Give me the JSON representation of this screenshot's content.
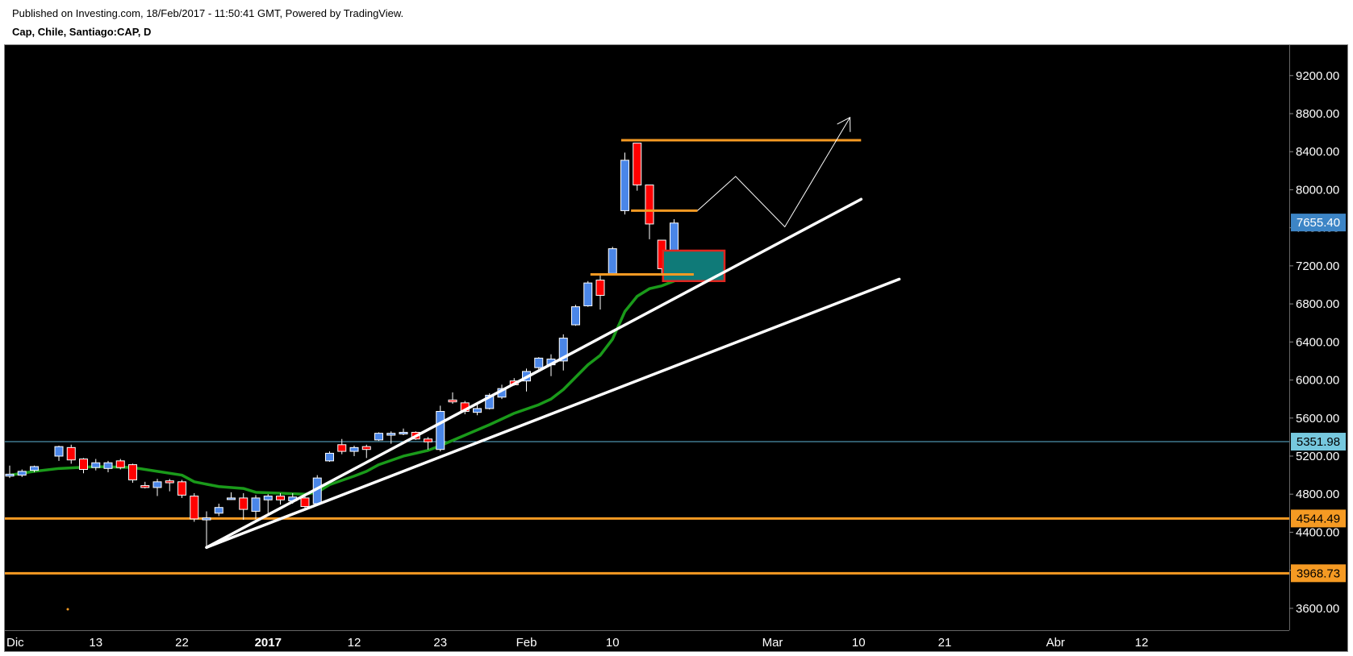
{
  "header": {
    "published": "Published on Investing.com, 18/Feb/2017 - 11:50:41 GMT, Powered by TradingView.",
    "symbol": "Cap, Chile, Santiago:CAP, D"
  },
  "chart_data": {
    "type": "candlestick",
    "y_axis": {
      "min": 3370,
      "max": 9520,
      "ticks": [
        {
          "value": 3600,
          "label": "3600.00"
        },
        {
          "value": 4000,
          "label": "4000.00"
        },
        {
          "value": 4400,
          "label": "4400.00"
        },
        {
          "value": 4800,
          "label": "4800.00"
        },
        {
          "value": 5200,
          "label": "5200.00"
        },
        {
          "value": 5600,
          "label": "5600.00"
        },
        {
          "value": 6000,
          "label": "6000.00"
        },
        {
          "value": 6400,
          "label": "6400.00"
        },
        {
          "value": 6800,
          "label": "6800.00"
        },
        {
          "value": 7200,
          "label": "7200.00"
        },
        {
          "value": 7600,
          "label": "7600.00"
        },
        {
          "value": 8000,
          "label": "8000.00"
        },
        {
          "value": 8400,
          "label": "8400.00"
        },
        {
          "value": 8800,
          "label": "8800.00"
        },
        {
          "value": 9200,
          "label": "9200.00"
        }
      ]
    },
    "x_axis": {
      "ticks": [
        {
          "slot": 0,
          "label": "Dic",
          "bold": false
        },
        {
          "slot": 7,
          "label": "13",
          "bold": false
        },
        {
          "slot": 14,
          "label": "22",
          "bold": false
        },
        {
          "slot": 21,
          "label": "2017",
          "bold": true
        },
        {
          "slot": 28,
          "label": "12",
          "bold": false
        },
        {
          "slot": 35,
          "label": "23",
          "bold": false
        },
        {
          "slot": 42,
          "label": "Feb",
          "bold": false
        },
        {
          "slot": 49,
          "label": "10",
          "bold": false
        },
        {
          "slot": 62,
          "label": "Mar",
          "bold": false
        },
        {
          "slot": 69,
          "label": "10",
          "bold": false
        },
        {
          "slot": 76,
          "label": "21",
          "bold": false
        },
        {
          "slot": 85,
          "label": "Abr",
          "bold": false
        },
        {
          "slot": 92,
          "label": "12",
          "bold": false
        }
      ]
    },
    "candles": [
      {
        "slot": 0,
        "o": 4990,
        "h": 5100,
        "l": 4970,
        "c": 5010
      },
      {
        "slot": 1,
        "o": 5000,
        "h": 5060,
        "l": 4980,
        "c": 5040
      },
      {
        "slot": 2,
        "o": 5050,
        "h": 5100,
        "l": 5030,
        "c": 5090
      },
      {
        "slot": 4,
        "o": 5200,
        "h": 5310,
        "l": 5150,
        "c": 5300
      },
      {
        "slot": 5,
        "o": 5290,
        "h": 5320,
        "l": 5120,
        "c": 5160
      },
      {
        "slot": 6,
        "o": 5170,
        "h": 5180,
        "l": 5020,
        "c": 5060
      },
      {
        "slot": 7,
        "o": 5080,
        "h": 5170,
        "l": 5050,
        "c": 5130
      },
      {
        "slot": 8,
        "o": 5070,
        "h": 5150,
        "l": 5030,
        "c": 5130
      },
      {
        "slot": 9,
        "o": 5150,
        "h": 5170,
        "l": 5060,
        "c": 5080
      },
      {
        "slot": 10,
        "o": 5110,
        "h": 5120,
        "l": 4920,
        "c": 4950
      },
      {
        "slot": 11,
        "o": 4890,
        "h": 4930,
        "l": 4860,
        "c": 4870
      },
      {
        "slot": 12,
        "o": 4870,
        "h": 4960,
        "l": 4780,
        "c": 4930
      },
      {
        "slot": 13,
        "o": 4940,
        "h": 4960,
        "l": 4830,
        "c": 4920
      },
      {
        "slot": 14,
        "o": 4930,
        "h": 4950,
        "l": 4760,
        "c": 4790
      },
      {
        "slot": 15,
        "o": 4780,
        "h": 4810,
        "l": 4510,
        "c": 4540
      },
      {
        "slot": 16,
        "o": 4530,
        "h": 4620,
        "l": 4250,
        "c": 4550
      },
      {
        "slot": 17,
        "o": 4600,
        "h": 4700,
        "l": 4570,
        "c": 4660
      },
      {
        "slot": 18,
        "o": 4750,
        "h": 4820,
        "l": 4740,
        "c": 4760
      },
      {
        "slot": 19,
        "o": 4760,
        "h": 4810,
        "l": 4530,
        "c": 4640
      },
      {
        "slot": 20,
        "o": 4620,
        "h": 4790,
        "l": 4540,
        "c": 4760
      },
      {
        "slot": 21,
        "o": 4740,
        "h": 4800,
        "l": 4600,
        "c": 4780
      },
      {
        "slot": 22,
        "o": 4780,
        "h": 4810,
        "l": 4690,
        "c": 4740
      },
      {
        "slot": 23,
        "o": 4730,
        "h": 4810,
        "l": 4700,
        "c": 4770
      },
      {
        "slot": 24,
        "o": 4760,
        "h": 4790,
        "l": 4640,
        "c": 4670
      },
      {
        "slot": 25,
        "o": 4700,
        "h": 5000,
        "l": 4680,
        "c": 4970
      },
      {
        "slot": 26,
        "o": 5150,
        "h": 5250,
        "l": 5140,
        "c": 5230
      },
      {
        "slot": 27,
        "o": 5320,
        "h": 5380,
        "l": 5220,
        "c": 5250
      },
      {
        "slot": 28,
        "o": 5250,
        "h": 5310,
        "l": 5200,
        "c": 5290
      },
      {
        "slot": 29,
        "o": 5300,
        "h": 5320,
        "l": 5180,
        "c": 5270
      },
      {
        "slot": 30,
        "o": 5370,
        "h": 5450,
        "l": 5360,
        "c": 5440
      },
      {
        "slot": 31,
        "o": 5420,
        "h": 5460,
        "l": 5330,
        "c": 5440
      },
      {
        "slot": 32,
        "o": 5440,
        "h": 5490,
        "l": 5420,
        "c": 5450
      },
      {
        "slot": 33,
        "o": 5450,
        "h": 5460,
        "l": 5370,
        "c": 5380
      },
      {
        "slot": 34,
        "o": 5380,
        "h": 5400,
        "l": 5270,
        "c": 5350
      },
      {
        "slot": 35,
        "o": 5270,
        "h": 5730,
        "l": 5250,
        "c": 5670
      },
      {
        "slot": 36,
        "o": 5790,
        "h": 5870,
        "l": 5750,
        "c": 5770
      },
      {
        "slot": 37,
        "o": 5760,
        "h": 5780,
        "l": 5640,
        "c": 5670
      },
      {
        "slot": 38,
        "o": 5660,
        "h": 5740,
        "l": 5630,
        "c": 5700
      },
      {
        "slot": 39,
        "o": 5700,
        "h": 5860,
        "l": 5690,
        "c": 5840
      },
      {
        "slot": 40,
        "o": 5820,
        "h": 5950,
        "l": 5800,
        "c": 5910
      },
      {
        "slot": 41,
        "o": 5990,
        "h": 6020,
        "l": 5940,
        "c": 5950
      },
      {
        "slot": 42,
        "o": 5990,
        "h": 6120,
        "l": 5880,
        "c": 6090
      },
      {
        "slot": 43,
        "o": 6130,
        "h": 6240,
        "l": 6110,
        "c": 6230
      },
      {
        "slot": 44,
        "o": 6160,
        "h": 6270,
        "l": 6040,
        "c": 6220
      },
      {
        "slot": 45,
        "o": 6200,
        "h": 6480,
        "l": 6100,
        "c": 6440
      },
      {
        "slot": 46,
        "o": 6580,
        "h": 6790,
        "l": 6570,
        "c": 6770
      },
      {
        "slot": 47,
        "o": 6780,
        "h": 7040,
        "l": 6770,
        "c": 7020
      },
      {
        "slot": 48,
        "o": 7050,
        "h": 7110,
        "l": 6740,
        "c": 6890
      },
      {
        "slot": 49,
        "o": 7120,
        "h": 7400,
        "l": 7110,
        "c": 7380
      },
      {
        "slot": 50,
        "o": 7780,
        "h": 8390,
        "l": 7740,
        "c": 8310
      },
      {
        "slot": 51,
        "o": 8490,
        "h": 8490,
        "l": 7990,
        "c": 8050
      },
      {
        "slot": 52,
        "o": 8050,
        "h": 8050,
        "l": 7480,
        "c": 7640
      },
      {
        "slot": 53,
        "o": 7470,
        "h": 7470,
        "l": 7100,
        "c": 7170
      },
      {
        "slot": 54,
        "o": 7290,
        "h": 7690,
        "l": 7270,
        "c": 7650
      }
    ],
    "ma_series": {
      "color": "#1a9a1a",
      "points": [
        {
          "slot": 0,
          "v": 5000
        },
        {
          "slot": 2,
          "v": 5040
        },
        {
          "slot": 4,
          "v": 5070
        },
        {
          "slot": 7,
          "v": 5090
        },
        {
          "slot": 10,
          "v": 5080
        },
        {
          "slot": 12,
          "v": 5040
        },
        {
          "slot": 14,
          "v": 5000
        },
        {
          "slot": 15,
          "v": 4930
        },
        {
          "slot": 17,
          "v": 4880
        },
        {
          "slot": 19,
          "v": 4860
        },
        {
          "slot": 20,
          "v": 4820
        },
        {
          "slot": 22,
          "v": 4810
        },
        {
          "slot": 24,
          "v": 4800
        },
        {
          "slot": 25,
          "v": 4820
        },
        {
          "slot": 26,
          "v": 4900
        },
        {
          "slot": 28,
          "v": 4990
        },
        {
          "slot": 29,
          "v": 5040
        },
        {
          "slot": 30,
          "v": 5110
        },
        {
          "slot": 32,
          "v": 5200
        },
        {
          "slot": 34,
          "v": 5260
        },
        {
          "slot": 35,
          "v": 5310
        },
        {
          "slot": 37,
          "v": 5420
        },
        {
          "slot": 39,
          "v": 5530
        },
        {
          "slot": 41,
          "v": 5650
        },
        {
          "slot": 43,
          "v": 5740
        },
        {
          "slot": 44,
          "v": 5800
        },
        {
          "slot": 45,
          "v": 5900
        },
        {
          "slot": 46,
          "v": 6030
        },
        {
          "slot": 47,
          "v": 6160
        },
        {
          "slot": 48,
          "v": 6260
        },
        {
          "slot": 49,
          "v": 6430
        },
        {
          "slot": 50,
          "v": 6720
        },
        {
          "slot": 51,
          "v": 6880
        },
        {
          "slot": 52,
          "v": 6960
        },
        {
          "slot": 53,
          "v": 6990
        },
        {
          "slot": 54,
          "v": 7040
        },
        {
          "slot": 55,
          "v": 7110
        }
      ]
    },
    "h_levels": [
      {
        "value": 5351.98,
        "label": "5351.98",
        "line": "#5fb6d6",
        "badge_bg": "#76c8de",
        "badge_fg": "#000000",
        "width": 1
      },
      {
        "value": 4544.49,
        "label": "4544.49",
        "line": "#f59a23",
        "badge_bg": "#f59a23",
        "badge_fg": "#000000",
        "width": 3
      },
      {
        "value": 3968.73,
        "label": "3968.73",
        "line": "#f59a23",
        "badge_bg": "#f59a23",
        "badge_fg": "#000000",
        "width": 3
      }
    ],
    "last_price": {
      "value": 7655.4,
      "label": "7655.40",
      "badge_bg": "#3d85c6",
      "badge_fg": "#ffffff"
    },
    "trendlines": [
      {
        "from": {
          "slot": 16,
          "v": 4240
        },
        "to": {
          "slot": 69.2,
          "v": 7900
        },
        "color": "#ffffff"
      },
      {
        "from": {
          "slot": 16,
          "v": 4240
        },
        "to": {
          "slot": 72.3,
          "v": 7060
        },
        "color": "#ffffff"
      }
    ],
    "resistance_segments": [
      {
        "from_slot": 49.7,
        "to_slot": 69.2,
        "v": 8520
      },
      {
        "from_slot": 50.5,
        "to_slot": 55.9,
        "v": 7780
      },
      {
        "from_slot": 47.2,
        "to_slot": 55.6,
        "v": 7110
      }
    ],
    "projection_path": [
      {
        "slot": 55.9,
        "v": 7780
      },
      {
        "slot": 59.0,
        "v": 8140
      },
      {
        "slot": 63.0,
        "v": 7610
      },
      {
        "slot": 68.3,
        "v": 8760
      }
    ],
    "target_box": {
      "from_slot": 53.1,
      "to_slot": 58.1,
      "v_top": 7360,
      "v_bottom": 7040
    }
  }
}
